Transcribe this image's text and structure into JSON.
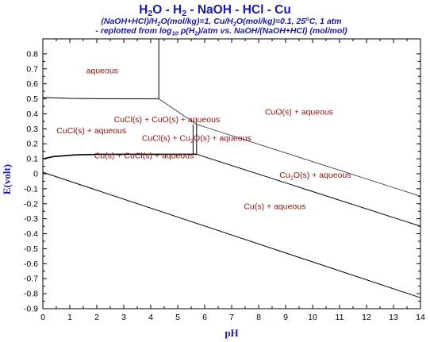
{
  "chart_data": {
    "type": "line",
    "title": {
      "pre": "H",
      "s1": "2",
      "mid1": "O - H",
      "s2": "2",
      "post": " - NaOH - HCl - Cu"
    },
    "subtitle1": {
      "a": "(NaOH+HCl)/H",
      "s1": "2",
      "b": "O(mol/kg)=1, Cu/H",
      "s2": "2",
      "c": "O(mol/kg)=0.1,   25",
      "sup": "o",
      "d": "C, 1 atm"
    },
    "subtitle2": {
      "a": "- replotted from log",
      "s1": "10",
      "b": " p(H",
      "s2": "2",
      "c": ")/atm vs. NaOH/(NaOH+HCl) (mol/mol)"
    },
    "xlabel": "pH",
    "ylabel": "E(volt)",
    "xlim": [
      0,
      14
    ],
    "ylim": [
      -0.9,
      0.9
    ],
    "xticks": [
      0,
      1,
      2,
      3,
      4,
      5,
      6,
      7,
      8,
      9,
      10,
      11,
      12,
      13,
      14
    ],
    "yticks": [
      0.8,
      0.7,
      0.6,
      0.5,
      0.4,
      0.3,
      0.2,
      0.1,
      0,
      -0.1,
      -0.2,
      -0.3,
      -0.4,
      -0.5,
      -0.6,
      -0.7,
      -0.8,
      -0.9
    ],
    "grid": false,
    "series": [
      {
        "points": [
          [
            0,
            0.01
          ],
          [
            14,
            -0.827
          ]
        ],
        "stroke": 1.0
      },
      {
        "points": [
          [
            4.3,
            0.5
          ],
          [
            5.7,
            0.33
          ],
          [
            14,
            -0.15
          ]
        ],
        "stroke": 0.7
      },
      {
        "points": [
          [
            5.7,
            0.13
          ],
          [
            14,
            -0.35
          ]
        ],
        "stroke": 1.0
      },
      {
        "points": [
          [
            0,
            0.51
          ],
          [
            1,
            0.503
          ],
          [
            2,
            0.501
          ],
          [
            4.3,
            0.5
          ]
        ],
        "stroke": 1.0
      },
      {
        "points": [
          [
            4.3,
            0.9
          ],
          [
            4.3,
            0.5
          ]
        ],
        "stroke": 1.0
      },
      {
        "points": [
          [
            0,
            0.1
          ],
          [
            0.4,
            0.115
          ],
          [
            1.2,
            0.126
          ],
          [
            2.2,
            0.13
          ],
          [
            5.7,
            0.13
          ]
        ],
        "stroke": 1.6
      },
      {
        "points": [
          [
            5.7,
            0.33
          ],
          [
            5.7,
            0.13
          ]
        ],
        "stroke": 1.0
      },
      {
        "points": [
          [
            5.57,
            0.33
          ],
          [
            5.57,
            0.13
          ]
        ],
        "stroke": 1.0
      }
    ],
    "regions": [
      {
        "text": "aqueous",
        "x": 2.2,
        "y": 0.69
      },
      {
        "text": "CuCl(s) + CuO(s) + aqueous",
        "x": 4.6,
        "y": 0.365
      },
      {
        "text": "CuCl(s) + aqueous",
        "x": 1.8,
        "y": 0.29
      },
      {
        "text": "CuCl(s) + Cu",
        "s": "2",
        "t": "O(s) + aqueous",
        "x": 5.7,
        "y": 0.24
      },
      {
        "text": "Cu(s) + CuCl(s) + aqueous",
        "x": 3.75,
        "y": 0.125
      },
      {
        "text": "CuO(s) + aqueous",
        "x": 9.5,
        "y": 0.415
      },
      {
        "text": "Cu",
        "s": "2",
        "t": "O(s) + aqueous",
        "x": 10.1,
        "y": -0.005
      },
      {
        "text": "Cu(s) + aqueous",
        "x": 8.6,
        "y": -0.215
      }
    ]
  }
}
